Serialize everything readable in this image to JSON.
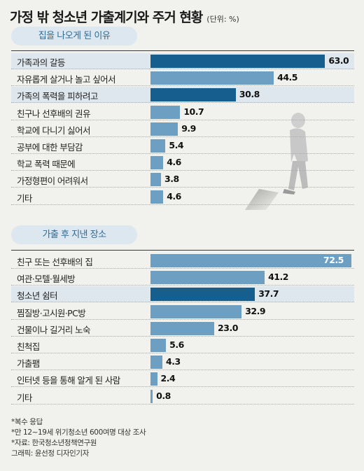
{
  "header": {
    "title": "가정 밖 청소년 가출계기와 주거 현황",
    "unit": "(단위: %)"
  },
  "chart_data": [
    {
      "type": "bar",
      "title": "집을 나오게 된 이유",
      "categories": [
        "가족과의 갈등",
        "자유롭게 살거나 놀고 싶어서",
        "가족의 폭력을 피하려고",
        "친구나 선후배의 권유",
        "학교에 다니기 싫어서",
        "공부에 대한 부담감",
        "학교 폭력 때문에",
        "가정형편이 어려워서",
        "기타"
      ],
      "values": [
        63.0,
        44.5,
        30.8,
        10.7,
        9.9,
        5.4,
        4.6,
        3.8,
        4.6
      ],
      "labels": [
        "63.0",
        "44.5",
        "30.8",
        "10.7",
        "9.9",
        "5.4",
        "4.6",
        "3.8",
        "4.6"
      ],
      "highlight": [
        true,
        false,
        true,
        false,
        false,
        false,
        false,
        false,
        false
      ],
      "xlim": [
        0,
        72.5
      ]
    },
    {
      "type": "bar",
      "title": "가출 후 지낸 장소",
      "categories": [
        "친구 또는 선후배의 집",
        "여관·모텔·월세방",
        "청소년 쉼터",
        "찜질방·고시원·PC방",
        "건물이나 길거리 노숙",
        "친척집",
        "가출팸",
        "인터넷 등을 통해 알게 된 사람",
        "기타"
      ],
      "values": [
        72.5,
        41.2,
        37.7,
        32.9,
        23.0,
        5.6,
        4.3,
        2.4,
        0.8
      ],
      "labels": [
        "72.5",
        "41.2",
        "37.7",
        "32.9",
        "23.0",
        "5.6",
        "4.3",
        "2.4",
        "0.8"
      ],
      "highlight": [
        false,
        false,
        true,
        false,
        false,
        false,
        false,
        false,
        false
      ],
      "xlim": [
        0,
        72.5
      ]
    }
  ],
  "colors": {
    "bar": "#6d9fc3",
    "bar_highlight": "#165e8d",
    "row_highlight": "#dfe7ee",
    "pill_bg": "#dde7ef",
    "pill_text": "#2d6b97"
  },
  "notes": [
    "*복수 응답",
    "*만 12~19세 위기청소년 600여명 대상 조사",
    "*자료: 한국청소년정책연구원",
    "그래픽: 윤선정 디자인기자"
  ]
}
